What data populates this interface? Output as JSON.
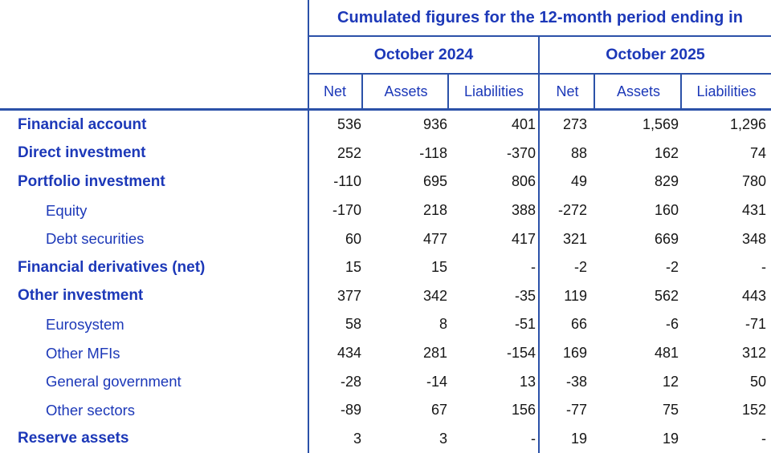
{
  "table": {
    "title": "Cumulated figures for the 12-month period ending in",
    "groups": [
      {
        "label": "October 2024"
      },
      {
        "label": "October 2025"
      }
    ],
    "columns": [
      "Net",
      "Assets",
      "Liabilities",
      "Net",
      "Assets",
      "Liabilities"
    ],
    "rows": [
      {
        "label": "Financial account",
        "level": 0,
        "values": [
          "536",
          "936",
          "401",
          "273",
          "1,569",
          "1,296"
        ]
      },
      {
        "label": "Direct investment",
        "level": 0,
        "values": [
          "252",
          "-118",
          "-370",
          "88",
          "162",
          "74"
        ]
      },
      {
        "label": "Portfolio investment",
        "level": 0,
        "values": [
          "-110",
          "695",
          "806",
          "49",
          "829",
          "780"
        ]
      },
      {
        "label": "Equity",
        "level": 1,
        "values": [
          "-170",
          "218",
          "388",
          "-272",
          "160",
          "431"
        ]
      },
      {
        "label": "Debt securities",
        "level": 1,
        "values": [
          "60",
          "477",
          "417",
          "321",
          "669",
          "348"
        ]
      },
      {
        "label": "Financial derivatives (net)",
        "level": 0,
        "values": [
          "15",
          "15",
          "-",
          "-2",
          "-2",
          "-"
        ]
      },
      {
        "label": "Other investment",
        "level": 0,
        "values": [
          "377",
          "342",
          "-35",
          "119",
          "562",
          "443"
        ]
      },
      {
        "label": "Eurosystem",
        "level": 1,
        "values": [
          "58",
          "8",
          "-51",
          "66",
          "-6",
          "-71"
        ]
      },
      {
        "label": "Other MFIs",
        "level": 1,
        "values": [
          "434",
          "281",
          "-154",
          "169",
          "481",
          "312"
        ]
      },
      {
        "label": "General government",
        "level": 1,
        "values": [
          "-28",
          "-14",
          "13",
          "-38",
          "12",
          "50"
        ]
      },
      {
        "label": "Other sectors",
        "level": 1,
        "values": [
          "-89",
          "67",
          "156",
          "-77",
          "75",
          "152"
        ]
      },
      {
        "label": "Reserve assets",
        "level": 0,
        "values": [
          "3",
          "3",
          "-",
          "19",
          "19",
          "-"
        ]
      }
    ],
    "colors": {
      "text_blue": "#1c38b8",
      "rule_blue": "#2b51a8",
      "number_color": "#161616",
      "background": "#ffffff"
    }
  },
  "chart_data": {
    "type": "table",
    "title": "Cumulated figures for the 12-month period ending in",
    "column_groups": [
      "October 2024",
      "October 2025"
    ],
    "columns": [
      "Net",
      "Assets",
      "Liabilities",
      "Net",
      "Assets",
      "Liabilities"
    ],
    "rows": [
      [
        "Financial account",
        536,
        936,
        401,
        273,
        1569,
        1296
      ],
      [
        "Direct investment",
        252,
        -118,
        -370,
        88,
        162,
        74
      ],
      [
        "Portfolio investment",
        -110,
        695,
        806,
        49,
        829,
        780
      ],
      [
        "Equity",
        -170,
        218,
        388,
        -272,
        160,
        431
      ],
      [
        "Debt securities",
        60,
        477,
        417,
        321,
        669,
        348
      ],
      [
        "Financial derivatives (net)",
        15,
        15,
        null,
        -2,
        -2,
        null
      ],
      [
        "Other investment",
        377,
        342,
        -35,
        119,
        562,
        443
      ],
      [
        "Eurosystem",
        58,
        8,
        -51,
        66,
        -6,
        -71
      ],
      [
        "Other MFIs",
        434,
        281,
        -154,
        169,
        481,
        312
      ],
      [
        "General government",
        -28,
        -14,
        13,
        -38,
        12,
        50
      ],
      [
        "Other sectors",
        -89,
        67,
        156,
        -77,
        75,
        152
      ],
      [
        "Reserve assets",
        3,
        3,
        null,
        19,
        19,
        null
      ]
    ]
  }
}
